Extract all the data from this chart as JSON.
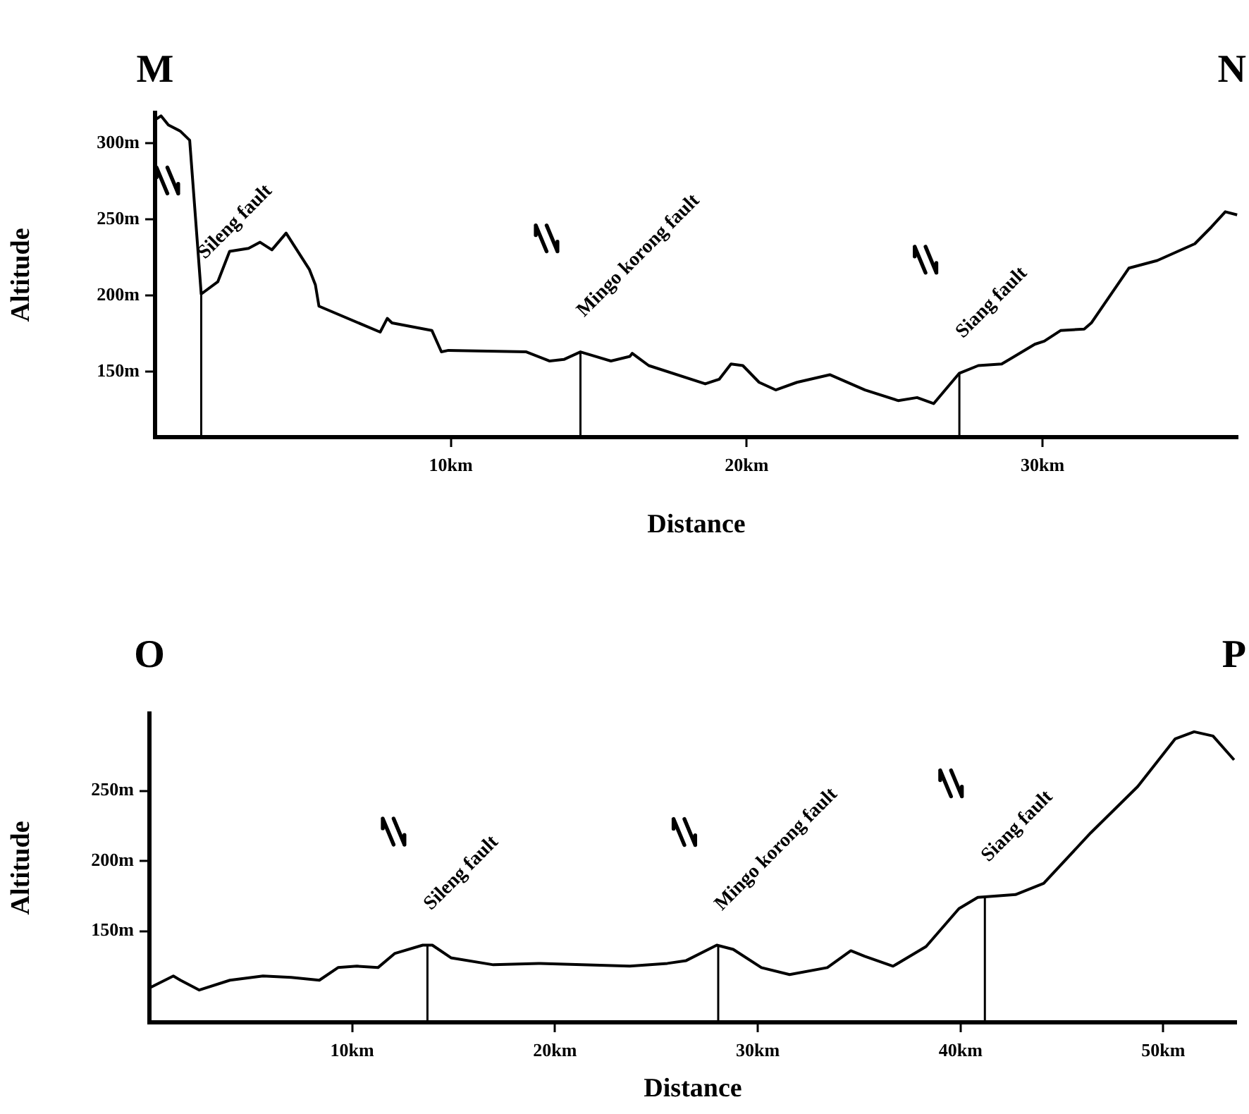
{
  "chart_data": [
    {
      "type": "line",
      "xlabel": "Distance",
      "ylabel": "Altitude",
      "xlim": [
        0,
        36.6
      ],
      "ylim": [
        107,
        320
      ],
      "xticks": [
        {
          "value": 10,
          "label": "10km"
        },
        {
          "value": 20,
          "label": "20km"
        },
        {
          "value": 30,
          "label": "30km"
        }
      ],
      "yticks": [
        {
          "value": 150,
          "label": "150m"
        },
        {
          "value": 200,
          "label": "200m"
        },
        {
          "value": 250,
          "label": "250m"
        },
        {
          "value": 300,
          "label": "300m"
        }
      ],
      "x": [
        0.05,
        0.2,
        0.45,
        0.85,
        1.17,
        1.56,
        2.12,
        2.52,
        3.16,
        3.55,
        3.95,
        4.43,
        5.22,
        5.42,
        5.54,
        7.61,
        7.85,
        8.01,
        9.36,
        9.68,
        9.92,
        12.55,
        13.34,
        13.82,
        14.38,
        15.41,
        16.05,
        16.13,
        16.69,
        18.6,
        19.07,
        19.47,
        19.87,
        20.42,
        20.98,
        21.7,
        22.81,
        24.0,
        25.12,
        25.76,
        26.32,
        27.19,
        27.83,
        28.62,
        29.74,
        30.06,
        30.61,
        31.41,
        31.65,
        32.92,
        33.88,
        35.15,
        35.71,
        36.18,
        36.58
      ],
      "series": [
        {
          "color": "#000000",
          "values": [
            316,
            318,
            312,
            308,
            302,
            201,
            209,
            229,
            231,
            235,
            230,
            241,
            217,
            207,
            193,
            176,
            185,
            182,
            177,
            163,
            164,
            163,
            157,
            158,
            163,
            157,
            160,
            162,
            154,
            142,
            145,
            155,
            154,
            143,
            138,
            143,
            148,
            138,
            131,
            133,
            129,
            149,
            154,
            155,
            168,
            170,
            177,
            178,
            182,
            218,
            223,
            234,
            245,
            255,
            253
          ]
        }
      ],
      "ref_lines": [
        {
          "axis": "x",
          "value": 1.56,
          "label": "Sileng fault",
          "color": "#000000"
        },
        {
          "axis": "x",
          "value": 14.38,
          "label": "Mingo korong fault",
          "color": "#000000"
        },
        {
          "axis": "x",
          "value": 27.19,
          "label": "Siang fault",
          "color": "#000000"
        }
      ],
      "annotations": [
        "M",
        "N"
      ]
    },
    {
      "type": "line",
      "xlabel": "Distance",
      "ylabel": "Altitude",
      "xlim": [
        0,
        53.6
      ],
      "ylim": [
        85,
        305
      ],
      "xticks": [
        {
          "value": 10,
          "label": "10km"
        },
        {
          "value": 20,
          "label": "20km"
        },
        {
          "value": 30,
          "label": "30km"
        },
        {
          "value": 40,
          "label": "40km"
        },
        {
          "value": 50,
          "label": "50km"
        }
      ],
      "yticks": [
        {
          "value": 150,
          "label": "150m"
        },
        {
          "value": 200,
          "label": "200m"
        },
        {
          "value": 250,
          "label": "250m"
        }
      ],
      "x": [
        0.07,
        1.18,
        1.53,
        2.46,
        3.97,
        5.6,
        6.99,
        8.38,
        9.3,
        10.23,
        11.27,
        12.09,
        13.48,
        13.95,
        14.87,
        16.96,
        19.28,
        23.69,
        25.54,
        26.47,
        27.98,
        28.79,
        30.18,
        31.57,
        33.43,
        34.59,
        35.28,
        36.67,
        38.3,
        39.92,
        40.85,
        42.71,
        44.1,
        46.42,
        48.74,
        50.59,
        51.52,
        52.45,
        53.49
      ],
      "series": [
        {
          "color": "#000000",
          "values": [
            110,
            118,
            115,
            108,
            115,
            118,
            117,
            115,
            124,
            125,
            124,
            134,
            140,
            140,
            131,
            126,
            127,
            125,
            127,
            129,
            140,
            137,
            124,
            119,
            124,
            136,
            132,
            125,
            139,
            166,
            174,
            176,
            184,
            220,
            253,
            287,
            292,
            289,
            272
          ]
        }
      ],
      "ref_lines": [
        {
          "axis": "x",
          "value": 13.71,
          "label": "Sileng fault",
          "color": "#000000"
        },
        {
          "axis": "x",
          "value": 28.05,
          "label": "Mingo korong fault",
          "color": "#000000"
        },
        {
          "axis": "x",
          "value": 41.2,
          "label": "Siang fault",
          "color": "#000000"
        }
      ],
      "annotations": [
        "O",
        "P"
      ]
    }
  ]
}
